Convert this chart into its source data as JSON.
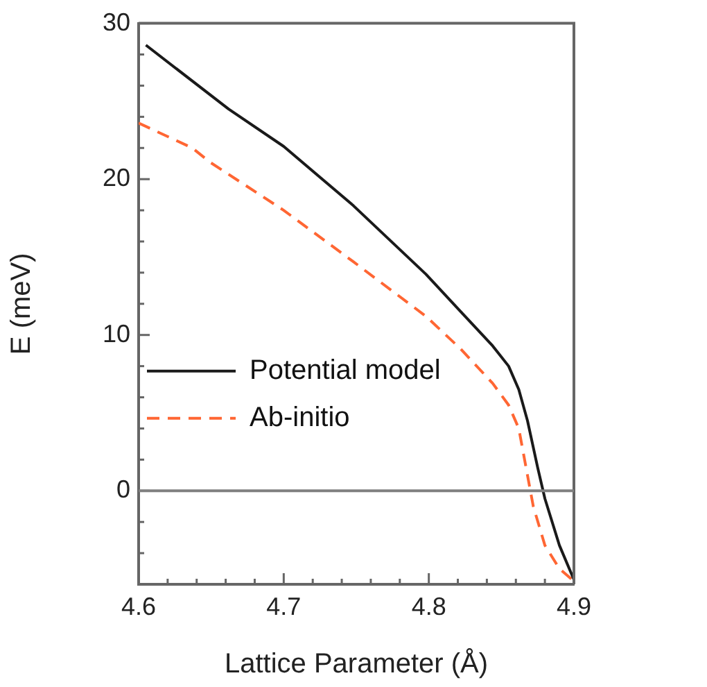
{
  "chart_data": {
    "type": "line",
    "xlabel": "Lattice Parameter (Å)",
    "ylabel": "E (meV)",
    "xlim": [
      4.6,
      4.9
    ],
    "ylim": [
      -6,
      30
    ],
    "xticks": [
      4.6,
      {
        "value": 4.62,
        "label": null
      },
      {
        "value": 4.64,
        "label": null
      },
      {
        "value": 4.66,
        "label": null
      },
      {
        "value": 4.68,
        "label": null
      },
      4.7,
      {
        "value": 4.72,
        "label": null
      },
      {
        "value": 4.74,
        "label": null
      },
      {
        "value": 4.76,
        "label": null
      },
      {
        "value": 4.78,
        "label": null
      },
      4.8,
      {
        "value": 4.82,
        "label": null
      },
      {
        "value": 4.84,
        "label": null
      },
      {
        "value": 4.86,
        "label": null
      },
      {
        "value": 4.88,
        "label": null
      },
      4.9
    ],
    "yticks": [
      {
        "value": -4,
        "label": null
      },
      {
        "value": -2,
        "label": null
      },
      0,
      {
        "value": 2,
        "label": null
      },
      {
        "value": 4,
        "label": null
      },
      {
        "value": 6,
        "label": null
      },
      {
        "value": 8,
        "label": null
      },
      10,
      {
        "value": 12,
        "label": null
      },
      {
        "value": 14,
        "label": null
      },
      {
        "value": 16,
        "label": null
      },
      {
        "value": 18,
        "label": null
      },
      20,
      {
        "value": 22,
        "label": null
      },
      {
        "value": 24,
        "label": null
      },
      {
        "value": 26,
        "label": null
      },
      {
        "value": 28,
        "label": null
      },
      30
    ],
    "grid": false,
    "legend": "left",
    "marker": "none",
    "ref_lines": [
      {
        "axis": "y",
        "value": 0,
        "color": "#808080"
      }
    ],
    "series": [
      {
        "name": "Potential model",
        "color": "#1a1a1a",
        "line_style": "solid",
        "x": [
          4.605,
          4.662,
          4.7,
          4.748,
          4.798,
          4.822,
          4.844,
          4.855,
          4.862,
          4.868,
          4.875,
          4.88,
          4.89,
          4.9
        ],
        "values": [
          28.6,
          24.5,
          22.1,
          18.3,
          13.9,
          11.5,
          9.3,
          8,
          6.5,
          4.5,
          1.5,
          -0.5,
          -3.5,
          -5.7
        ]
      },
      {
        "name": "Ab-initio",
        "color": "#ff6633",
        "line_style": "dashed",
        "x": [
          4.6,
          4.637,
          4.649,
          4.7,
          4.748,
          4.798,
          4.822,
          4.844,
          4.855,
          4.862,
          4.868,
          4.872,
          4.88,
          4.89,
          4.9
        ],
        "values": [
          23.6,
          22.0,
          21.1,
          18.0,
          14.7,
          11.2,
          9.1,
          6.9,
          5.5,
          4,
          1,
          -1,
          -3.5,
          -5,
          -5.8
        ]
      }
    ]
  }
}
